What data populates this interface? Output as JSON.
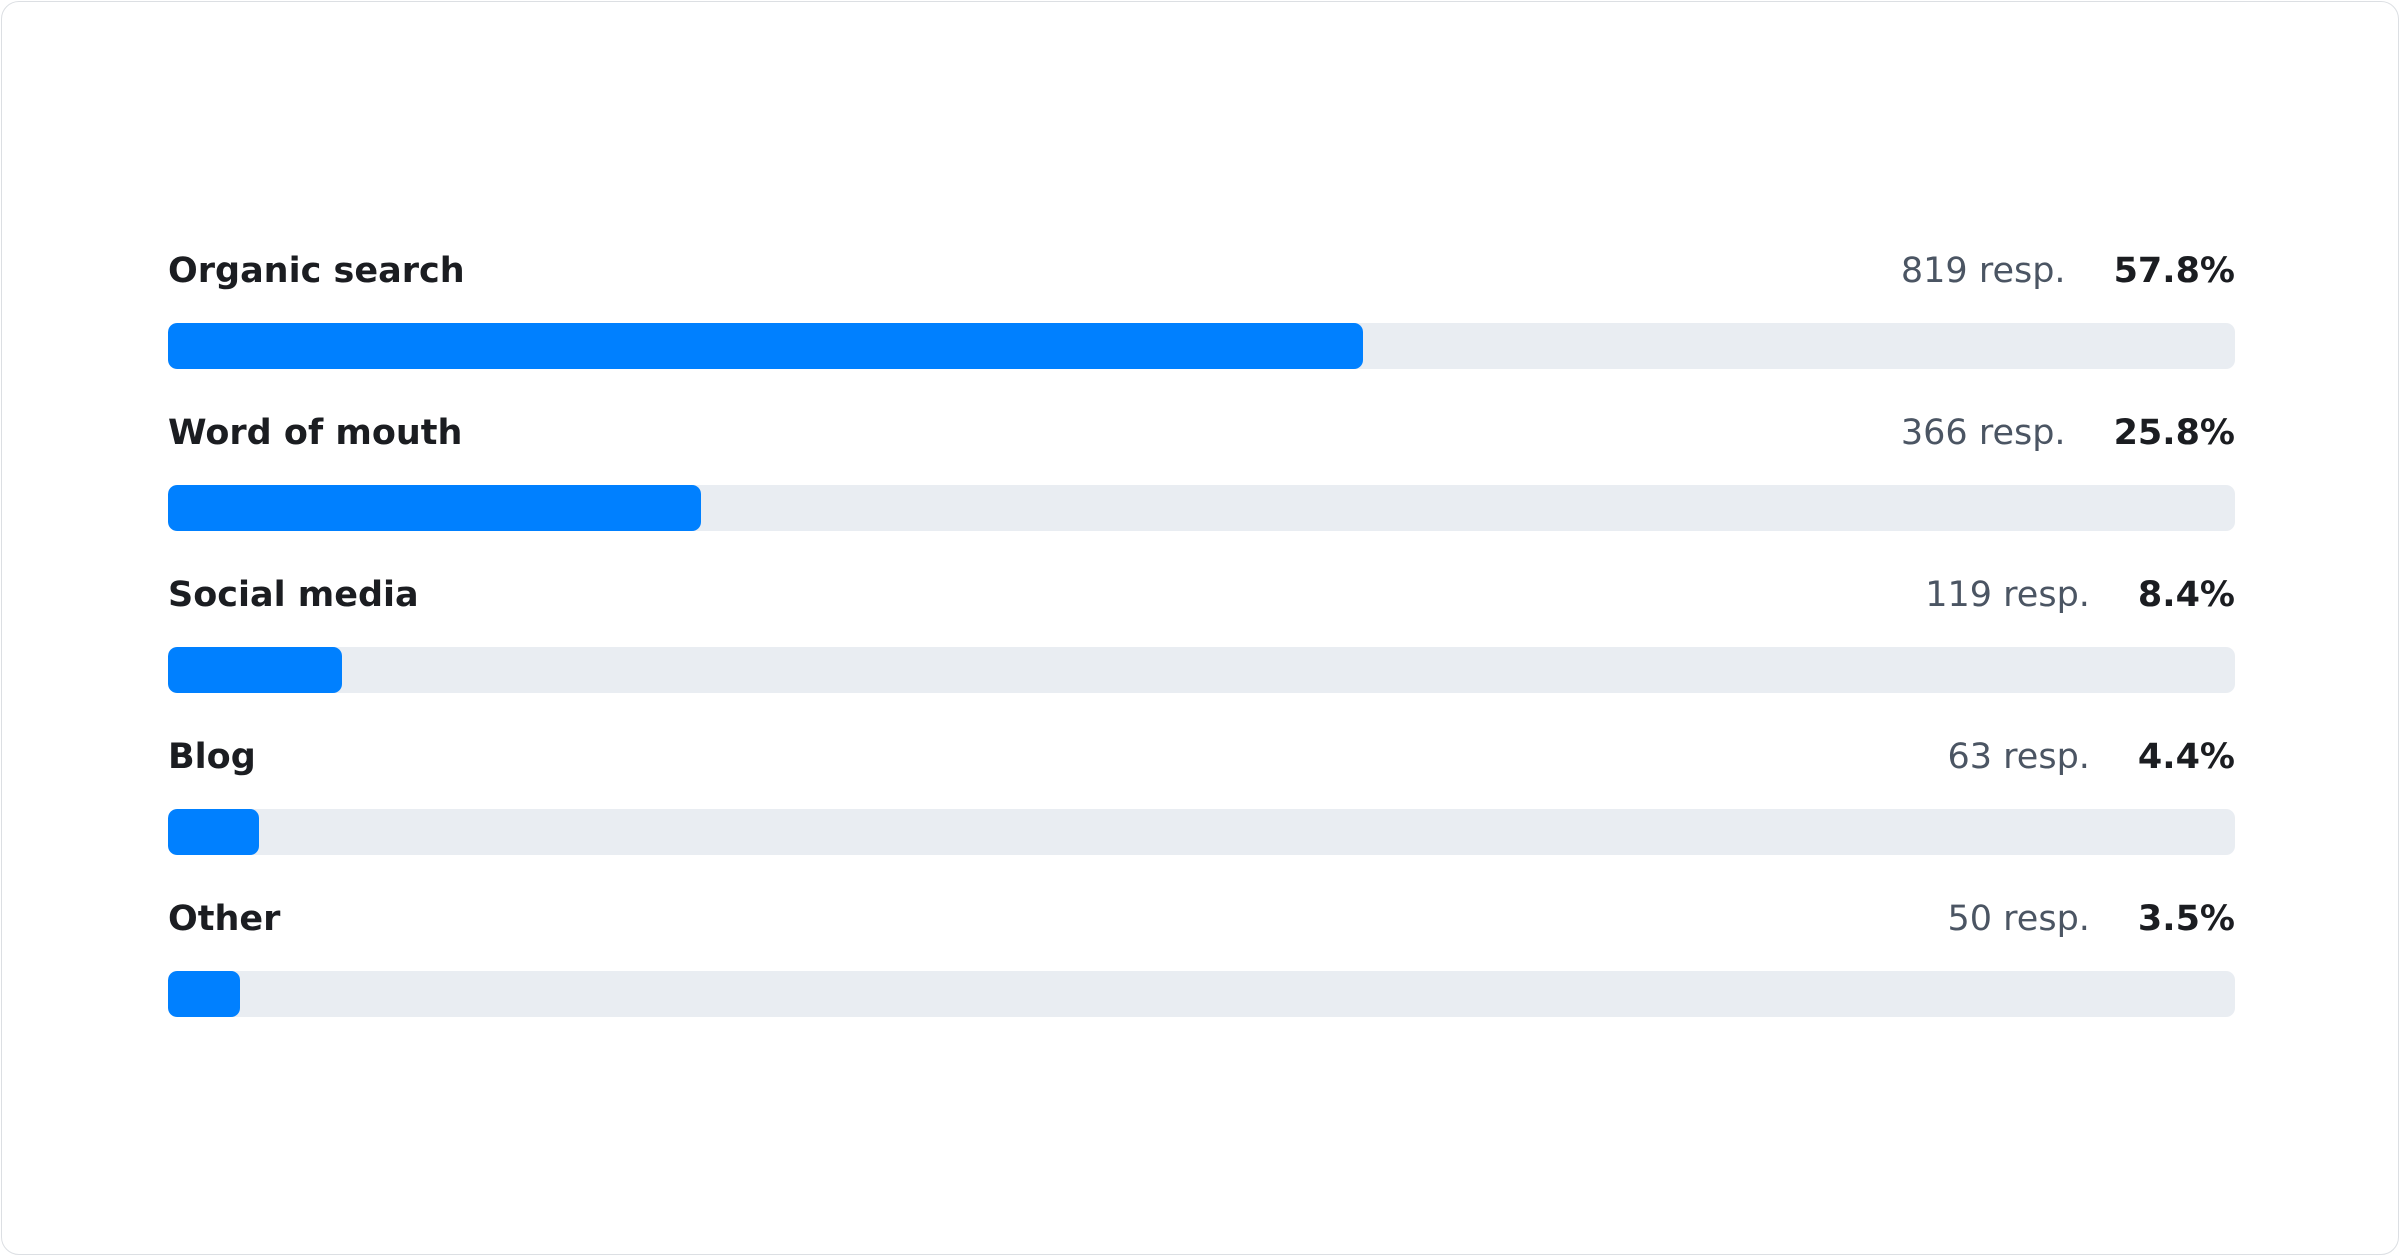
{
  "chart_data": {
    "type": "bar",
    "orientation": "horizontal",
    "categories": [
      "Organic search",
      "Word of mouth",
      "Social media",
      "Blog",
      "Other"
    ],
    "responses": [
      819,
      366,
      119,
      63,
      50
    ],
    "response_labels": [
      "819 resp.",
      "366 resp.",
      "119 resp.",
      "63 resp.",
      "50 resp."
    ],
    "values": [
      57.8,
      25.8,
      8.4,
      4.4,
      3.5
    ],
    "value_labels": [
      "57.8%",
      "25.8%",
      "8.4%",
      "4.4%",
      "3.5%"
    ],
    "xlim": [
      0,
      100
    ],
    "colors": {
      "fill": "#0080ff",
      "track": "#e9edf2"
    }
  }
}
